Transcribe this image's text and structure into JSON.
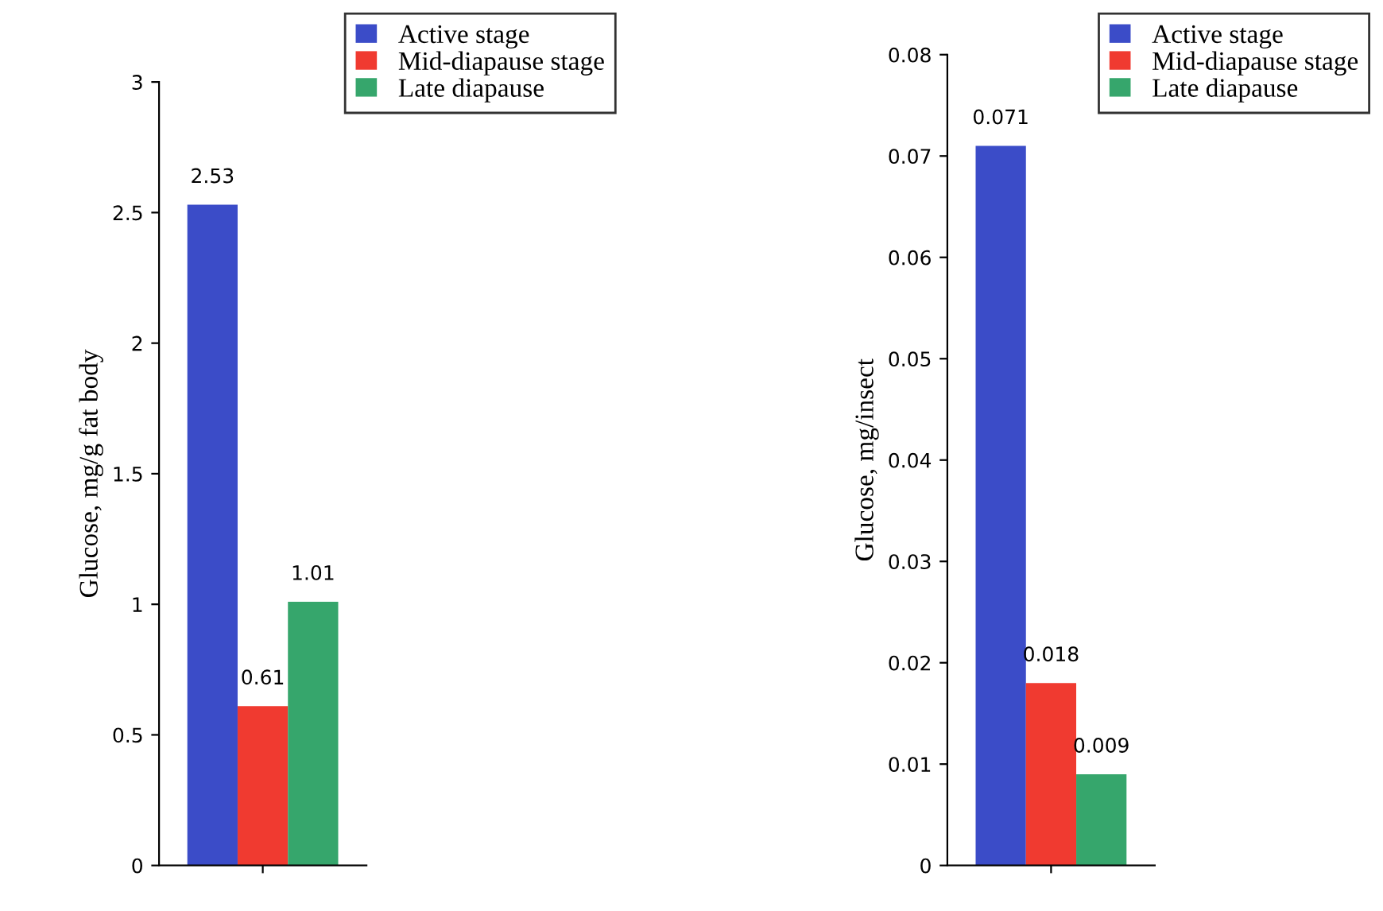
{
  "chart_data": [
    {
      "type": "bar",
      "ylabel": "Glucose, mg/g fat body",
      "categories": [
        null
      ],
      "ylim": [
        0,
        3
      ],
      "yticks": [
        0,
        0.5,
        1,
        {
          "value": 1.5,
          "label": "1.5"
        },
        2,
        2.5,
        3
      ],
      "data_labels": true,
      "legend": "top right",
      "grid": false,
      "series": [
        {
          "name": "Active stage",
          "color": "#3b4cc8",
          "values": [
            2.53
          ]
        },
        {
          "name": "Mid-diapause stage",
          "color": "#f03a30",
          "values": [
            0.61
          ]
        },
        {
          "name": "Late diapause",
          "color": "#36a66c",
          "values": [
            1.01
          ]
        }
      ]
    },
    {
      "type": "bar",
      "ylabel": "Glucose, mg/insect",
      "categories": [
        null
      ],
      "ylim": [
        0,
        0.08
      ],
      "yticks": [
        0,
        0.01,
        0.02,
        0.03,
        0.04,
        0.05,
        0.06,
        0.07,
        0.08
      ],
      "data_labels": true,
      "legend": "top right",
      "grid": false,
      "series": [
        {
          "name": "Active stage",
          "color": "#3b4cc8",
          "values": [
            0.071
          ]
        },
        {
          "name": "Mid-diapause stage",
          "color": "#f03a30",
          "values": [
            0.018
          ]
        },
        {
          "name": "Late diapause",
          "color": "#36a66c",
          "values": [
            0.009
          ]
        }
      ]
    }
  ]
}
